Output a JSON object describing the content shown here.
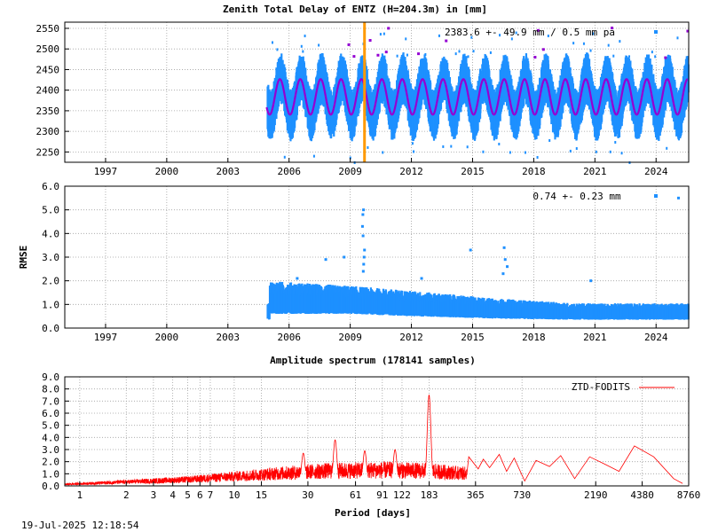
{
  "colors": {
    "ztd": "#1e90ff",
    "model": "#9400d3",
    "marker": "#ff9900",
    "spectrum": "#ff0000",
    "grid": "#a0a0a0"
  },
  "timestamp": "19-Jul-2025 12:18:54",
  "chart_data": [
    {
      "type": "scatter",
      "title": "Zenith Total Delay of ENTZ (H=204.3m) in [mm]",
      "xlabel": "",
      "ylabel": "",
      "xlim": [
        1995.0,
        2025.6
      ],
      "ylim": [
        2225,
        2565
      ],
      "xticks": [
        {
          "v": 1997,
          "label": "1997"
        },
        {
          "v": 2000,
          "label": "2000"
        },
        {
          "v": 2003,
          "label": "2003"
        },
        {
          "v": 2006,
          "label": "2006"
        },
        {
          "v": 2009,
          "label": "2009"
        },
        {
          "v": 2012,
          "label": "2012"
        },
        {
          "v": 2015,
          "label": "2015"
        },
        {
          "v": 2018,
          "label": "2018"
        },
        {
          "v": 2021,
          "label": "2021"
        },
        {
          "v": 2024,
          "label": "2024"
        }
      ],
      "yticks": [
        {
          "v": 2250,
          "label": "2250"
        },
        {
          "v": 2300,
          "label": "2300"
        },
        {
          "v": 2350,
          "label": "2350"
        },
        {
          "v": 2400,
          "label": "2400"
        },
        {
          "v": 2450,
          "label": "2450"
        },
        {
          "v": 2500,
          "label": "2500"
        },
        {
          "v": 2550,
          "label": "2550"
        }
      ],
      "annotation": "2383.6 +-  49.9 mm /  0.5 mm pa",
      "data_start": 2004.9,
      "data_end": 2025.55,
      "mean": 2383.6,
      "seasonal_amplitude": 45,
      "band_halfwidth_typical": 55,
      "marker_epoch": 2009.7,
      "series": [
        {
          "name": "ZTD",
          "kind": "points"
        },
        {
          "name": "Model",
          "kind": "line",
          "mean": 2383.6,
          "amplitude": 43,
          "trend_mm_pa": 0.5
        }
      ]
    },
    {
      "type": "scatter",
      "title": "",
      "xlabel": "",
      "ylabel": "RMSE",
      "xlim": [
        1995.0,
        2025.6
      ],
      "ylim": [
        0,
        6
      ],
      "xticks": [
        {
          "v": 1997,
          "label": "1997"
        },
        {
          "v": 2000,
          "label": "2000"
        },
        {
          "v": 2003,
          "label": "2003"
        },
        {
          "v": 2006,
          "label": "2006"
        },
        {
          "v": 2009,
          "label": "2009"
        },
        {
          "v": 2012,
          "label": "2012"
        },
        {
          "v": 2015,
          "label": "2015"
        },
        {
          "v": 2018,
          "label": "2018"
        },
        {
          "v": 2021,
          "label": "2021"
        },
        {
          "v": 2024,
          "label": "2024"
        }
      ],
      "yticks": [
        {
          "v": 0,
          "label": "0.0"
        },
        {
          "v": 1,
          "label": "1.0"
        },
        {
          "v": 2,
          "label": "2.0"
        },
        {
          "v": 3,
          "label": "3.0"
        },
        {
          "v": 4,
          "label": "4.0"
        },
        {
          "v": 5,
          "label": "5.0"
        },
        {
          "v": 6,
          "label": "6.0"
        }
      ],
      "annotation": "0.74 +-  0.23 mm",
      "data_start": 2004.9,
      "data_end": 2025.55,
      "band": [
        {
          "x": 2005.0,
          "lo": 0.6,
          "hi": 1.9
        },
        {
          "x": 2009.0,
          "lo": 0.6,
          "hi": 1.7
        },
        {
          "x": 2012.0,
          "lo": 0.5,
          "hi": 1.5
        },
        {
          "x": 2016.0,
          "lo": 0.4,
          "hi": 1.2
        },
        {
          "x": 2020.0,
          "lo": 0.35,
          "hi": 1.0
        },
        {
          "x": 2025.5,
          "lo": 0.35,
          "hi": 1.0
        }
      ],
      "outliers": [
        {
          "x": 2009.65,
          "y": 5.0
        },
        {
          "x": 2009.62,
          "y": 4.8
        },
        {
          "x": 2009.6,
          "y": 4.3
        },
        {
          "x": 2009.63,
          "y": 3.9
        },
        {
          "x": 2009.7,
          "y": 3.3
        },
        {
          "x": 2009.68,
          "y": 3.0
        },
        {
          "x": 2009.66,
          "y": 2.7
        },
        {
          "x": 2009.64,
          "y": 2.4
        },
        {
          "x": 2007.8,
          "y": 2.9
        },
        {
          "x": 2008.7,
          "y": 3.0
        },
        {
          "x": 2014.9,
          "y": 3.3
        },
        {
          "x": 2016.55,
          "y": 3.4
        },
        {
          "x": 2016.6,
          "y": 2.9
        },
        {
          "x": 2016.7,
          "y": 2.6
        },
        {
          "x": 2016.5,
          "y": 2.3
        },
        {
          "x": 2020.8,
          "y": 2.0
        },
        {
          "x": 2012.5,
          "y": 2.1
        },
        {
          "x": 2006.4,
          "y": 2.1
        },
        {
          "x": 2025.1,
          "y": 5.5
        }
      ]
    },
    {
      "type": "line",
      "title": "Amplitude spectrum (178141 samples)",
      "xlabel": "Period [days]",
      "ylabel": "",
      "xscale": "log",
      "xlim": [
        0.8,
        8760
      ],
      "ylim": [
        0,
        9
      ],
      "legend": "ZTD-FODITS",
      "legend_position": "top-right",
      "xticks": [
        {
          "v": 1,
          "label": "1"
        },
        {
          "v": 2,
          "label": "2"
        },
        {
          "v": 3,
          "label": "3"
        },
        {
          "v": 4,
          "label": "4"
        },
        {
          "v": 5,
          "label": "5"
        },
        {
          "v": 6,
          "label": "6"
        },
        {
          "v": 7,
          "label": "7"
        },
        {
          "v": 10,
          "label": "10"
        },
        {
          "v": 15,
          "label": "15"
        },
        {
          "v": 30,
          "label": "30"
        },
        {
          "v": 61,
          "label": "61"
        },
        {
          "v": 91,
          "label": "91"
        },
        {
          "v": 122,
          "label": "122"
        },
        {
          "v": 183,
          "label": "183"
        },
        {
          "v": 365,
          "label": "365"
        },
        {
          "v": 730,
          "label": "730"
        },
        {
          "v": 2190,
          "label": "2190"
        },
        {
          "v": 4380,
          "label": "4380"
        },
        {
          "v": 8760,
          "label": "8760"
        }
      ],
      "yticks": [
        {
          "v": 0,
          "label": "0.0"
        },
        {
          "v": 1,
          "label": "1.0"
        },
        {
          "v": 2,
          "label": "2.0"
        },
        {
          "v": 3,
          "label": "3.0"
        },
        {
          "v": 4,
          "label": "4.0"
        },
        {
          "v": 5,
          "label": "5.0"
        },
        {
          "v": 6,
          "label": "6.0"
        },
        {
          "v": 7,
          "label": "7.0"
        },
        {
          "v": 8,
          "label": "8.0"
        },
        {
          "v": 9,
          "label": "9.0"
        }
      ],
      "envelope": [
        {
          "p": 0.8,
          "a": 0.2
        },
        {
          "p": 2,
          "a": 0.5
        },
        {
          "p": 5,
          "a": 0.8
        },
        {
          "p": 10,
          "a": 1.2
        },
        {
          "p": 20,
          "a": 1.6
        },
        {
          "p": 40,
          "a": 1.9
        },
        {
          "p": 100,
          "a": 2.0
        },
        {
          "p": 180,
          "a": 1.9
        },
        {
          "p": 300,
          "a": 1.6
        }
      ],
      "peaks": [
        {
          "p": 182.6,
          "a": 7.5
        },
        {
          "p": 45,
          "a": 3.8
        },
        {
          "p": 28,
          "a": 2.7
        },
        {
          "p": 70,
          "a": 2.9
        },
        {
          "p": 110,
          "a": 3.0
        },
        {
          "p": 500,
          "a": 2.6
        }
      ],
      "tail": [
        {
          "p": 330,
          "a": 2.4
        },
        {
          "p": 380,
          "a": 1.4
        },
        {
          "p": 410,
          "a": 2.2
        },
        {
          "p": 450,
          "a": 1.5
        },
        {
          "p": 520,
          "a": 2.6
        },
        {
          "p": 580,
          "a": 1.2
        },
        {
          "p": 650,
          "a": 2.3
        },
        {
          "p": 760,
          "a": 0.4
        },
        {
          "p": 900,
          "a": 2.1
        },
        {
          "p": 1100,
          "a": 1.6
        },
        {
          "p": 1300,
          "a": 2.5
        },
        {
          "p": 1600,
          "a": 0.6
        },
        {
          "p": 2000,
          "a": 2.4
        },
        {
          "p": 2500,
          "a": 1.8
        },
        {
          "p": 3100,
          "a": 1.2
        },
        {
          "p": 3900,
          "a": 3.3
        },
        {
          "p": 5200,
          "a": 2.4
        },
        {
          "p": 7000,
          "a": 0.6
        },
        {
          "p": 8000,
          "a": 0.2
        }
      ]
    }
  ]
}
